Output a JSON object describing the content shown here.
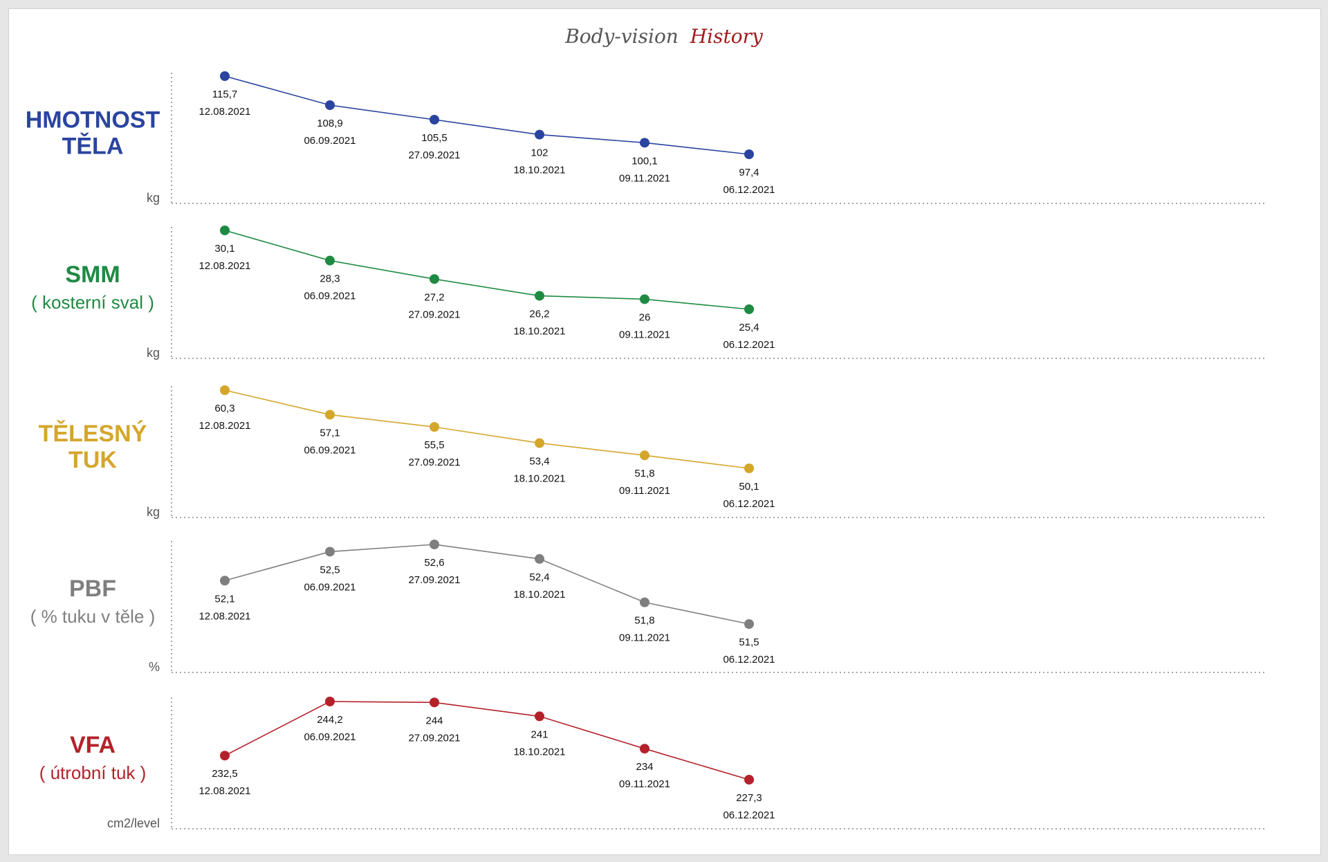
{
  "title": {
    "part1": "Body-vision",
    "part2": "History"
  },
  "colors": {
    "title_dark": "#555555",
    "title_accent": "#a01c1c",
    "axis": "#888888"
  },
  "chart_data": [
    {
      "type": "line",
      "name": "hmotnost",
      "label_lines": [
        "HMOTNOST",
        "TĚLA"
      ],
      "sublabel": "",
      "unit": "kg",
      "color": "#2a44a0",
      "categories": [
        "12.08.2021",
        "06.09.2021",
        "27.09.2021",
        "18.10.2021",
        "09.11.2021",
        "06.12.2021"
      ],
      "value_labels": [
        "115,7",
        "108,9",
        "105,5",
        "102",
        "100,1",
        "97,4"
      ],
      "values": [
        115.7,
        108.9,
        105.5,
        102,
        100.1,
        97.4
      ],
      "ylim": [
        97.4,
        115.7
      ]
    },
    {
      "type": "line",
      "name": "smm",
      "label_lines": [
        "SMM"
      ],
      "sublabel": "( kosterní sval )",
      "unit": "kg",
      "color": "#1f8a43",
      "categories": [
        "12.08.2021",
        "06.09.2021",
        "27.09.2021",
        "18.10.2021",
        "09.11.2021",
        "06.12.2021"
      ],
      "value_labels": [
        "30,1",
        "28,3",
        "27,2",
        "26,2",
        "26",
        "25,4"
      ],
      "values": [
        30.1,
        28.3,
        27.2,
        26.2,
        26.0,
        25.4
      ],
      "ylim": [
        25.4,
        30.1
      ]
    },
    {
      "type": "line",
      "name": "telesny-tuk",
      "label_lines": [
        "TĚLESNÝ",
        "TUK"
      ],
      "sublabel": "",
      "unit": "kg",
      "color": "#d4a62a",
      "categories": [
        "12.08.2021",
        "06.09.2021",
        "27.09.2021",
        "18.10.2021",
        "09.11.2021",
        "06.12.2021"
      ],
      "value_labels": [
        "60,3",
        "57,1",
        "55,5",
        "53,4",
        "51,8",
        "50,1"
      ],
      "values": [
        60.3,
        57.1,
        55.5,
        53.4,
        51.8,
        50.1
      ],
      "ylim": [
        50.1,
        60.3
      ]
    },
    {
      "type": "line",
      "name": "pbf",
      "label_lines": [
        "PBF"
      ],
      "sublabel": "( % tuku v těle )",
      "unit": "%",
      "color": "#7f7f7f",
      "categories": [
        "12.08.2021",
        "06.09.2021",
        "27.09.2021",
        "18.10.2021",
        "09.11.2021",
        "06.12.2021"
      ],
      "value_labels": [
        "52,1",
        "52,5",
        "52,6",
        "52,4",
        "51,8",
        "51,5"
      ],
      "values": [
        52.1,
        52.5,
        52.6,
        52.4,
        51.8,
        51.5
      ],
      "ylim": [
        51.5,
        52.6
      ]
    },
    {
      "type": "line",
      "name": "vfa",
      "label_lines": [
        "VFA"
      ],
      "sublabel": "( útrobní tuk )",
      "unit": "cm2/level",
      "color": "#b3222a",
      "categories": [
        "12.08.2021",
        "06.09.2021",
        "27.09.2021",
        "18.10.2021",
        "09.11.2021",
        "06.12.2021"
      ],
      "value_labels": [
        "232,5",
        "244,2",
        "244",
        "241",
        "234",
        "227,3"
      ],
      "values": [
        232.5,
        244.2,
        244,
        241,
        234,
        227.3
      ],
      "ylim": [
        227.3,
        244.2
      ]
    }
  ]
}
